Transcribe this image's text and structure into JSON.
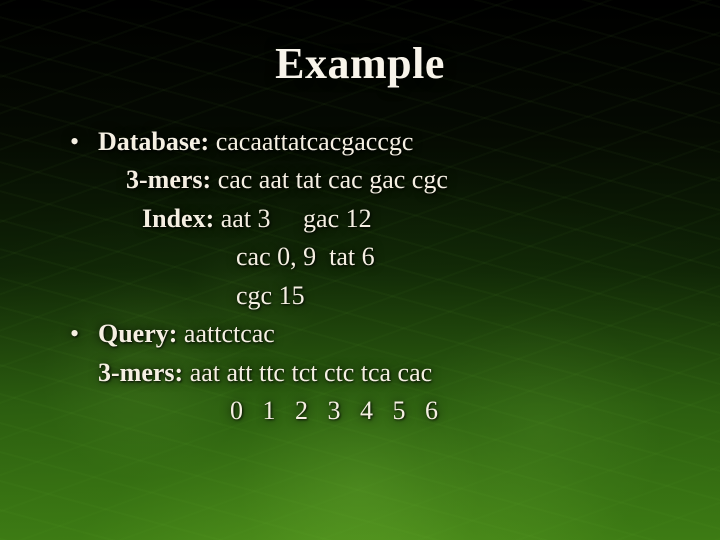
{
  "title": "Example",
  "text_color": "#f5efe2",
  "title_fontsize": 44,
  "body_fontsize": 26,
  "bullet_glyph": "•",
  "database": {
    "label": "Database:",
    "sequence": "cacaattatcacgaccgc",
    "three_mers_label": "3-mers:",
    "three_mers": "cac aat tat cac gac cgc",
    "index_label": "Index:",
    "index_rows": [
      "aat 3     gac 12",
      "cac 0, 9  tat 6",
      "cgc 15"
    ]
  },
  "query": {
    "label": "Query:",
    "sequence": "aattctcac",
    "three_mers_label": "3-mers:",
    "three_mers": "aat att ttc tct ctc tca cac",
    "positions": "0   1   2   3   4   5   6"
  }
}
